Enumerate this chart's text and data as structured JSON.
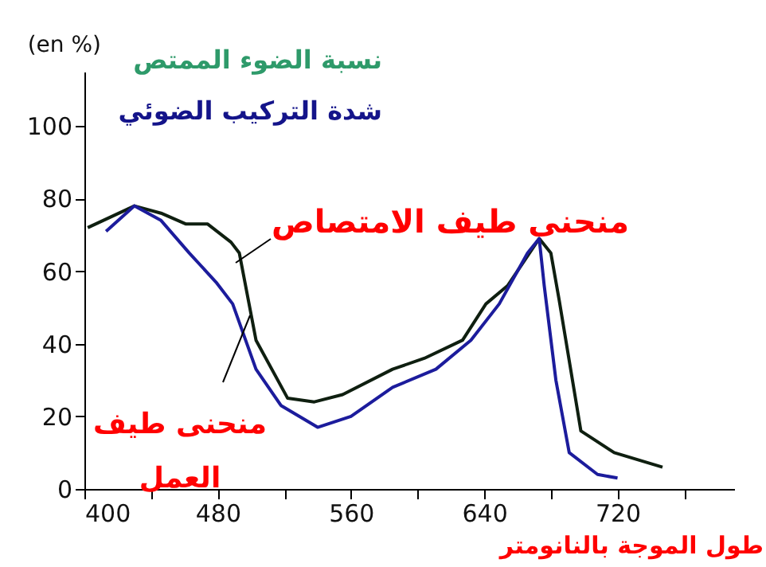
{
  "chart_data": {
    "type": "line",
    "title": "نسبة الضوء الممتص",
    "subtitle": "شدة التركيب الضوئي",
    "xlabel": "طول الموجة بالنانومتر",
    "ylabel": "(en %)",
    "xlim": [
      400,
      790
    ],
    "ylim": [
      0,
      115
    ],
    "xticks": [
      400,
      {
        "value": 440,
        "label": null
      },
      480,
      {
        "value": 520,
        "label": null
      },
      560,
      {
        "value": 600,
        "label": null
      },
      640,
      {
        "value": 680,
        "label": null
      },
      720,
      {
        "value": 760,
        "label": null
      }
    ],
    "yticks": [
      0,
      20,
      40,
      60,
      80,
      100
    ],
    "series": [
      {
        "name": "منحنى طيف الامتصاص",
        "color": "#0f1f10",
        "x": [
          402,
          430,
          446,
          461,
          474,
          488,
          493,
          503,
          522,
          538,
          555,
          585,
          604,
          627,
          641,
          654,
          673,
          680,
          685,
          698,
          718,
          747
        ],
        "values": [
          72,
          78,
          76,
          73,
          73,
          68,
          65,
          41,
          25,
          24,
          26,
          33,
          36,
          41,
          51,
          56,
          69,
          65,
          52,
          16,
          10,
          6
        ]
      },
      {
        "name": "منحنى طيف العمل",
        "color": "#1c1c9c",
        "x": [
          413,
          430,
          446,
          463,
          479,
          489,
          503,
          518,
          540,
          560,
          585,
          611,
          632,
          649,
          666,
          673,
          676,
          683,
          691,
          708,
          720
        ],
        "values": [
          71,
          78,
          74,
          65,
          57,
          51,
          33,
          23,
          17,
          20,
          28,
          33,
          41,
          51,
          65,
          69,
          56,
          30,
          10,
          4,
          3
        ]
      }
    ],
    "grid": false,
    "line_style": "solid",
    "marker": "none"
  }
}
